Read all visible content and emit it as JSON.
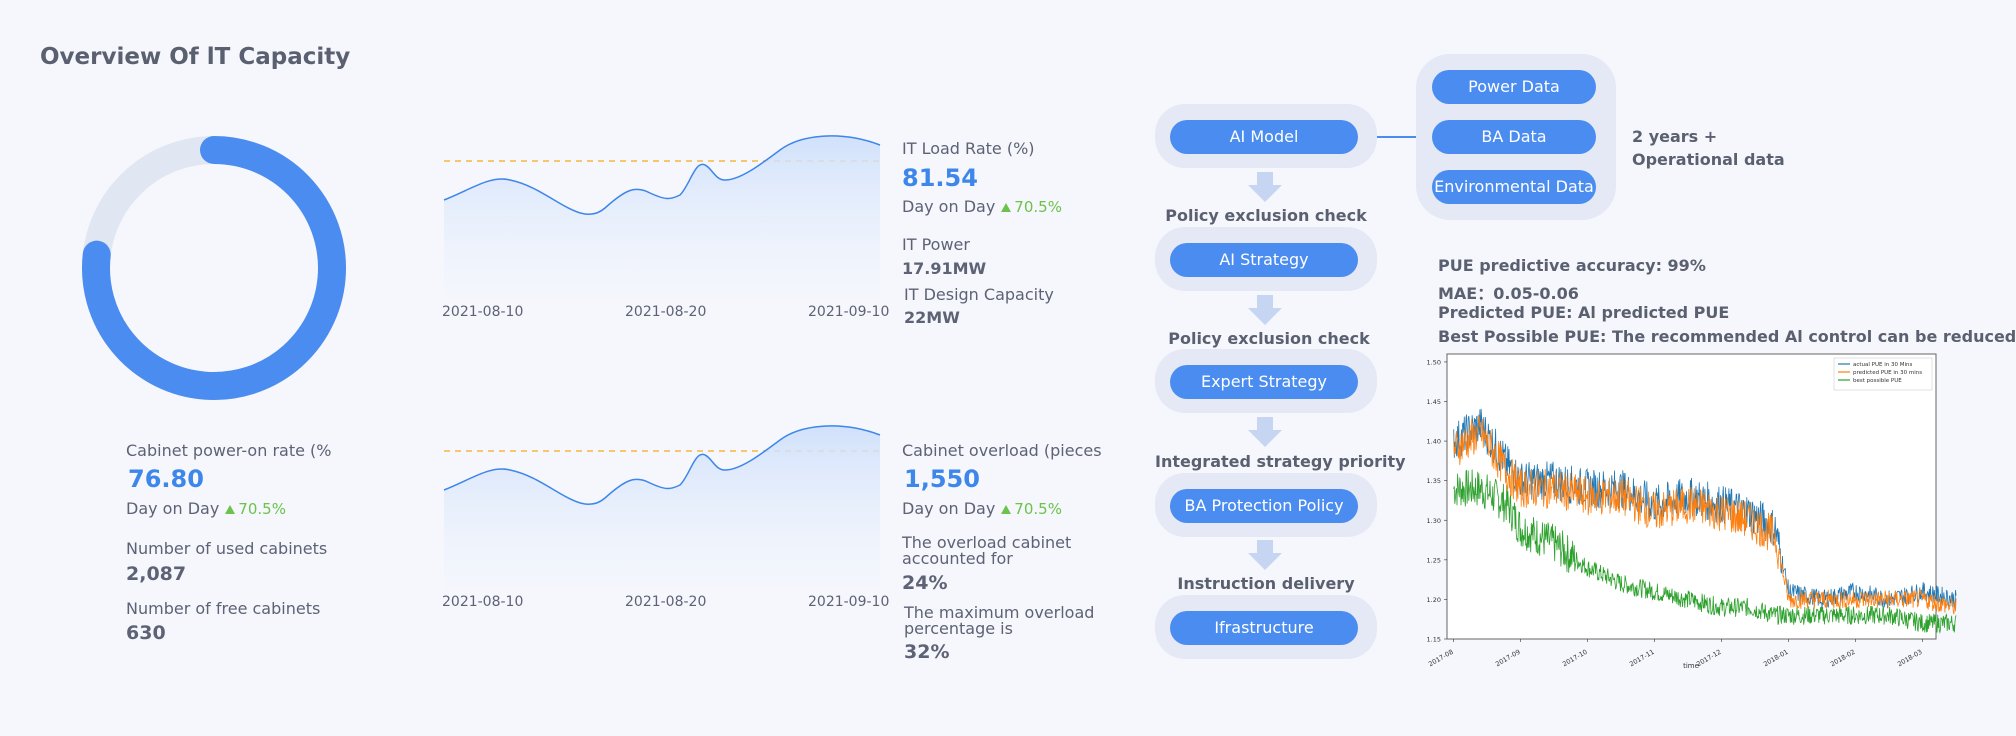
{
  "page": {
    "title": "Overview Of lT Capacity"
  },
  "cabinet": {
    "power_on_rate": 76.8,
    "label": "Cabinet power-on rate (%",
    "value": "76.80",
    "change_label": "Day on Day",
    "change": "70.5%",
    "used_label": "Number of used cabinets",
    "used_value": "2,087",
    "free_label": "Number of free cabinets",
    "free_value": "630"
  },
  "load_chart": {
    "ticks": [
      "2021-08-10",
      "2021-08-20",
      "2021-09-10"
    ],
    "label": "IT Load Rate (%)",
    "value": "81.54",
    "change_label": "Day on Day",
    "change": "70.5%",
    "power_label": "IT Power",
    "power_value": "17.91MW",
    "design_label": "IT Design Capacity",
    "design_value": "22MW"
  },
  "overload_chart": {
    "ticks": [
      "2021-08-10",
      "2021-08-20",
      "2021-09-10"
    ],
    "label": "Cabinet overload (pieces",
    "value": "1,550",
    "change_label": "Day on Day",
    "change": "70.5%",
    "accounted_label_1": "The overload cabinet",
    "accounted_label_2": "accounted for",
    "accounted_value": "24%",
    "max_label_1": "The maximum overload",
    "max_label_2": "percentage is",
    "max_value": "32%"
  },
  "flow": {
    "ai_model": "AI Model",
    "check1": "Policy exclusion check",
    "ai_strategy": "AI Strategy",
    "check2": "Policy exclusion check",
    "expert_strategy": "Expert Strategy",
    "check3": "Integrated strategy priority",
    "ba_protection": "BA Protection Policy",
    "check4": "Instruction delivery",
    "infrastructure": "Ifrastructure",
    "sources": [
      "Power Data",
      "BA Data",
      "Environmental Data"
    ],
    "ops_line1": "2 years +",
    "ops_line2": "Operational data"
  },
  "pue": {
    "accuracy": "PUE predictive accuracy: 99%",
    "mae": "MAE：0.05-0.06",
    "predicted": "Predicted PUE: Al predicted PUE",
    "best": "Best Possible PUE: The recommended Al control can be reduced"
  },
  "chart_data": {
    "type": "line",
    "xlabel": "time",
    "ylabel": "",
    "x_ticks": [
      "2017-08",
      "2017-09",
      "2017-10",
      "2017-11",
      "2017-12",
      "2018-01",
      "2018-02",
      "2018-03"
    ],
    "y_ticks": [
      "1.15",
      "1.20",
      "1.25",
      "1.30",
      "1.35",
      "1.40",
      "1.45",
      "1.50"
    ],
    "ylim": [
      1.15,
      1.51
    ],
    "legend_position": "top-right",
    "series": [
      {
        "name": "actual PUE in 30 Mins",
        "color": "#1f77b4",
        "points": [
          [
            0,
            1.4
          ],
          [
            0.4,
            1.42
          ],
          [
            0.8,
            1.37
          ],
          [
            1.0,
            1.35
          ],
          [
            1.5,
            1.35
          ],
          [
            2.0,
            1.34
          ],
          [
            2.5,
            1.34
          ],
          [
            3.0,
            1.32
          ],
          [
            3.5,
            1.33
          ],
          [
            4.0,
            1.32
          ],
          [
            4.4,
            1.31
          ],
          [
            4.8,
            1.29
          ],
          [
            5.0,
            1.21
          ],
          [
            5.5,
            1.2
          ],
          [
            6.0,
            1.21
          ],
          [
            6.5,
            1.2
          ],
          [
            7.0,
            1.21
          ],
          [
            7.5,
            1.2
          ]
        ]
      },
      {
        "name": "predicted PUE in 30 mins",
        "color": "#ff7f0e",
        "points": [
          [
            0,
            1.39
          ],
          [
            0.4,
            1.41
          ],
          [
            0.8,
            1.36
          ],
          [
            1.0,
            1.34
          ],
          [
            1.5,
            1.34
          ],
          [
            2.0,
            1.33
          ],
          [
            2.5,
            1.33
          ],
          [
            3.0,
            1.31
          ],
          [
            3.5,
            1.32
          ],
          [
            4.0,
            1.31
          ],
          [
            4.4,
            1.3
          ],
          [
            4.8,
            1.28
          ],
          [
            5.0,
            1.2
          ],
          [
            5.5,
            1.2
          ],
          [
            6.0,
            1.2
          ],
          [
            6.5,
            1.2
          ],
          [
            7.0,
            1.2
          ],
          [
            7.5,
            1.19
          ]
        ]
      },
      {
        "name": "best possible PUE",
        "color": "#2ca02c",
        "points": [
          [
            0,
            1.34
          ],
          [
            0.4,
            1.34
          ],
          [
            0.8,
            1.32
          ],
          [
            1.0,
            1.29
          ],
          [
            1.5,
            1.27
          ],
          [
            2.0,
            1.24
          ],
          [
            2.5,
            1.22
          ],
          [
            3.0,
            1.21
          ],
          [
            3.5,
            1.2
          ],
          [
            4.0,
            1.19
          ],
          [
            4.4,
            1.19
          ],
          [
            4.8,
            1.18
          ],
          [
            5.0,
            1.18
          ],
          [
            5.5,
            1.18
          ],
          [
            6.0,
            1.18
          ],
          [
            6.5,
            1.18
          ],
          [
            7.0,
            1.17
          ],
          [
            7.5,
            1.17
          ]
        ]
      }
    ]
  }
}
